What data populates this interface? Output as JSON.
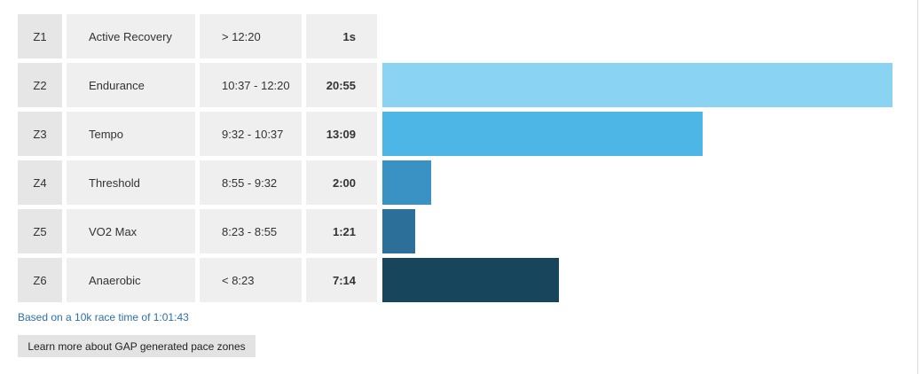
{
  "footnote": "Based on a 10k race time of 1:01:43",
  "learn_more_label": "Learn more about GAP generated pace zones",
  "zones": [
    {
      "zone": "Z1",
      "name": "Active Recovery",
      "range": "> 12:20",
      "time": "1s",
      "seconds": 1,
      "color": "#8bd3f2"
    },
    {
      "zone": "Z2",
      "name": "Endurance",
      "range": "10:37 - 12:20",
      "time": "20:55",
      "seconds": 1255,
      "color": "#8bd3f2"
    },
    {
      "zone": "Z3",
      "name": "Tempo",
      "range": "9:32 - 10:37",
      "time": "13:09",
      "seconds": 789,
      "color": "#4db6e7"
    },
    {
      "zone": "Z4",
      "name": "Threshold",
      "range": "8:55 - 9:32",
      "time": "2:00",
      "seconds": 120,
      "color": "#3a92c4"
    },
    {
      "zone": "Z5",
      "name": "VO2 Max",
      "range": "8:23 - 8:55",
      "time": "1:21",
      "seconds": 81,
      "color": "#2c6f98"
    },
    {
      "zone": "Z6",
      "name": "Anaerobic",
      "range": "< 8:23",
      "time": "7:14",
      "seconds": 434,
      "color": "#17465c"
    }
  ]
}
